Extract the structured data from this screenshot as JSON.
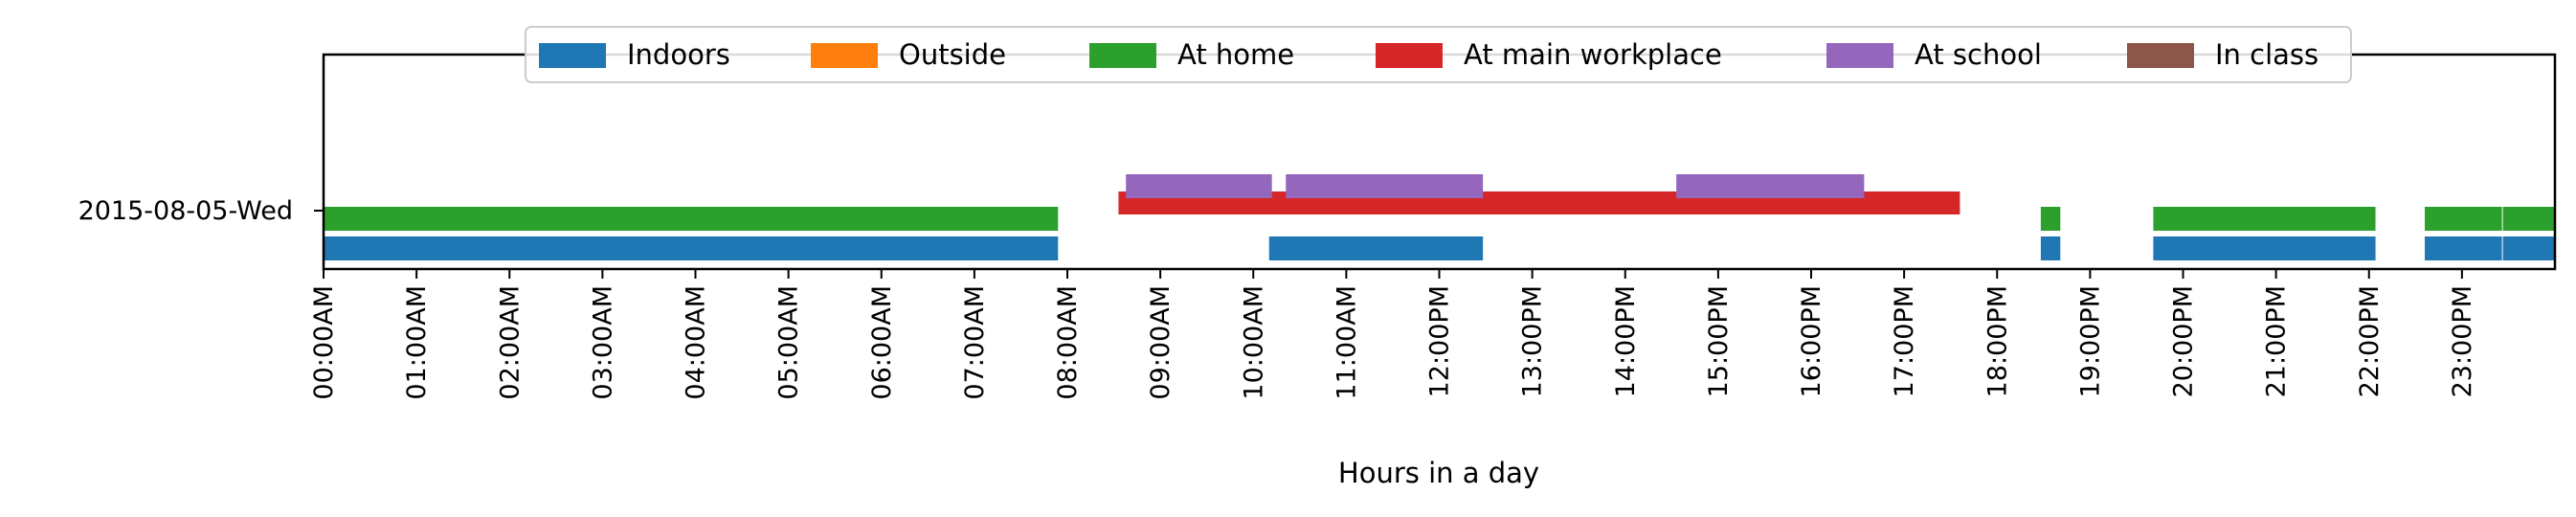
{
  "chart_data": {
    "type": "timeline",
    "xlabel": "Hours in a day",
    "xlim": [
      0,
      24
    ],
    "y_category": "2015-08-05-Wed",
    "x_ticks": [
      "00:00AM",
      "01:00AM",
      "02:00AM",
      "03:00AM",
      "04:00AM",
      "05:00AM",
      "06:00AM",
      "07:00AM",
      "08:00AM",
      "09:00AM",
      "10:00AM",
      "11:00AM",
      "12:00PM",
      "13:00PM",
      "14:00PM",
      "15:00PM",
      "16:00PM",
      "17:00PM",
      "18:00PM",
      "19:00PM",
      "20:00PM",
      "21:00PM",
      "22:00PM",
      "23:00PM"
    ],
    "legend_position": "top-center",
    "series": [
      {
        "name": "Indoors",
        "color": "#1f77b4",
        "intervals": [
          [
            0.0,
            7.9
          ],
          [
            10.17,
            12.47
          ],
          [
            18.47,
            18.68
          ],
          [
            19.68,
            22.07
          ],
          [
            22.6,
            23.43
          ],
          [
            23.44,
            24.0
          ]
        ]
      },
      {
        "name": "Outside",
        "color": "#ff7f0e",
        "intervals": []
      },
      {
        "name": "At home",
        "color": "#2ca02c",
        "intervals": [
          [
            0.0,
            7.9
          ],
          [
            18.47,
            18.68
          ],
          [
            19.68,
            22.07
          ],
          [
            22.6,
            23.43
          ],
          [
            23.44,
            24.0
          ]
        ]
      },
      {
        "name": "At main workplace",
        "color": "#d62728",
        "intervals": [
          [
            8.55,
            17.6
          ]
        ]
      },
      {
        "name": "At school",
        "color": "#9467bd",
        "intervals": [
          [
            8.63,
            10.2
          ],
          [
            10.35,
            12.47
          ],
          [
            14.55,
            16.57
          ]
        ]
      },
      {
        "name": "In class",
        "color": "#8c564b",
        "intervals": []
      }
    ]
  }
}
